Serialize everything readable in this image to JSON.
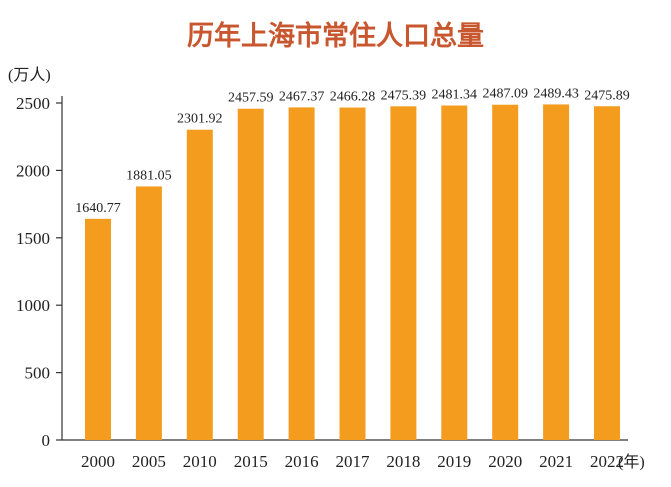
{
  "colors": {
    "bar": "#F39C1E",
    "title": "#C8562E",
    "axis": "#333333",
    "text": "#222222"
  },
  "chart_data": {
    "type": "bar",
    "title": "历年上海市常住人口总量",
    "ylabel": "(万人)",
    "xunit": "(年)",
    "categories": [
      "2000",
      "2005",
      "2010",
      "2015",
      "2016",
      "2017",
      "2018",
      "2019",
      "2020",
      "2021",
      "2022"
    ],
    "values": [
      1640.77,
      1881.05,
      2301.92,
      2457.59,
      2467.37,
      2466.28,
      2475.39,
      2481.34,
      2487.09,
      2489.43,
      2475.89
    ],
    "value_labels": [
      "1640.77",
      "1881.05",
      "2301.92",
      "2457.59",
      "2467.37",
      "2466.28",
      "2475.39",
      "2481.34",
      "2487.09",
      "2489.43",
      "2475.89"
    ],
    "yticks": [
      0,
      500,
      1000,
      1500,
      2000,
      2500
    ],
    "ylim": [
      0,
      2500
    ],
    "grid": false,
    "legend": "none"
  }
}
